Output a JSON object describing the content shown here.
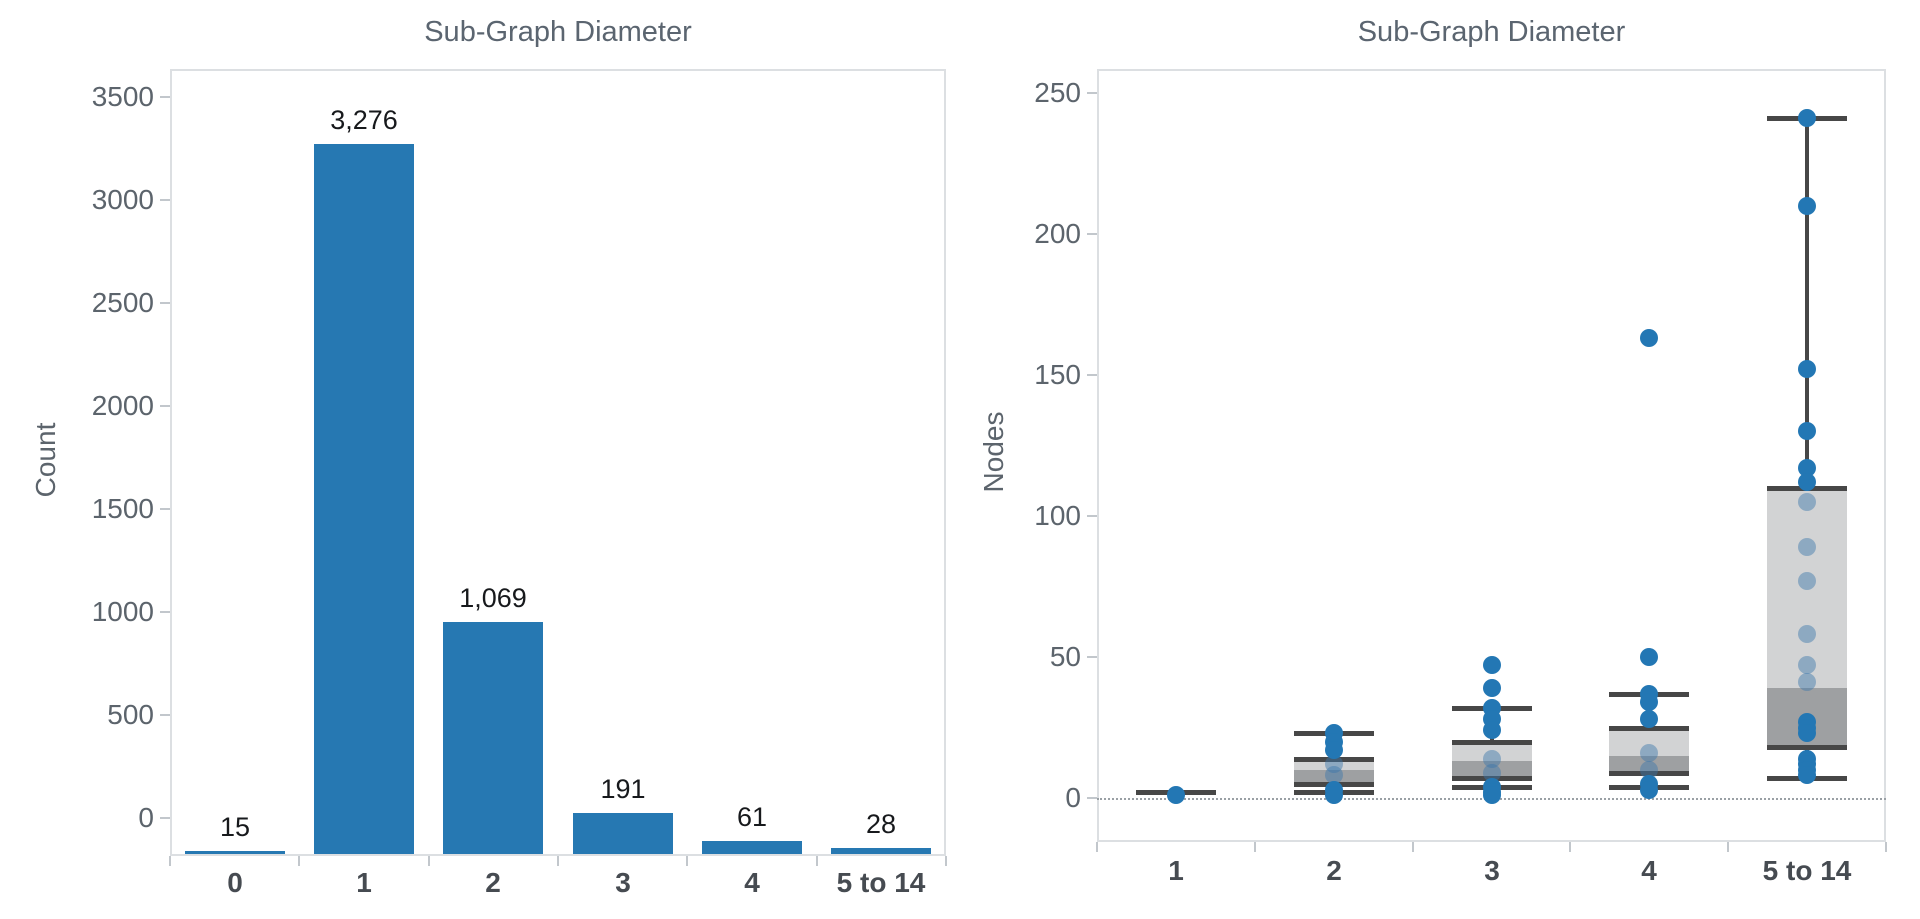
{
  "colors": {
    "bar_blue": "#2678b2",
    "dot_blue": "#2377b4",
    "dot_faded": "rgba(58,118,170,0.45)",
    "box_fill_light": "#d2d3d4",
    "box_fill_dark": "#9ea0a2",
    "box_line": "#474747",
    "plot_border": "#dcdfe2",
    "tick_mark": "#c2c7cc",
    "title_text": "#5b6570",
    "tick_text": "#5c646c",
    "xlabel_text": "#464b51",
    "value_label_text": "#17191c",
    "zero_line": "#9aa0a5"
  },
  "chart_data": [
    {
      "type": "bar",
      "title": "Sub-Graph Diameter",
      "xlabel": "",
      "ylabel": "Count",
      "categories": [
        "0",
        "1",
        "2",
        "3",
        "4",
        "5 to 14"
      ],
      "values": [
        15,
        3276,
        1069,
        191,
        61,
        28
      ],
      "value_labels": [
        "15",
        "3,276",
        "1,069",
        "191",
        "61",
        "28"
      ],
      "yticks": [
        0,
        500,
        1000,
        1500,
        2000,
        2500,
        3000,
        3500
      ],
      "ytick_labels": [
        "0",
        "500",
        "1000",
        "1500",
        "2000",
        "2500",
        "3000",
        "3500"
      ],
      "ylim": [
        0,
        3500
      ],
      "grid": false,
      "legend": "none"
    },
    {
      "type": "boxplot",
      "title": "Sub-Graph Diameter",
      "xlabel": "",
      "ylabel": "Nodes",
      "categories": [
        "1",
        "2",
        "3",
        "4",
        "5 to 14"
      ],
      "yticks": [
        0,
        50,
        100,
        150,
        200,
        250
      ],
      "ytick_labels": [
        "0",
        "50",
        "100",
        "150",
        "200",
        "250"
      ],
      "ylim": [
        -5,
        255
      ],
      "zero_reference_line": true,
      "grid": false,
      "legend": "none",
      "series": [
        {
          "category": "1",
          "low": 2,
          "q1": 2,
          "median": 2,
          "q3": 2,
          "high": 2,
          "points": [
            1
          ],
          "points_faded": []
        },
        {
          "category": "2",
          "low": 2,
          "q1": 5,
          "median": 10,
          "q3": 14,
          "high": 23,
          "points": [
            23,
            20,
            17,
            3,
            1
          ],
          "points_faded": [
            12,
            8
          ]
        },
        {
          "category": "3",
          "low": 4,
          "q1": 7,
          "median": 13,
          "q3": 20,
          "high": 32,
          "points": [
            47,
            39,
            32,
            28,
            24,
            4,
            2,
            1
          ],
          "points_faded": [
            14,
            9
          ]
        },
        {
          "category": "4",
          "low": 4,
          "q1": 9,
          "median": 15,
          "q3": 25,
          "high": 37,
          "points": [
            163,
            50,
            37,
            34,
            28,
            5,
            3
          ],
          "points_faded": [
            16,
            10
          ]
        },
        {
          "category": "5 to 14",
          "low": 7,
          "q1": 18,
          "median": 39,
          "q3": 110,
          "high": 241,
          "points": [
            241,
            210,
            152,
            130,
            117,
            112,
            27,
            25,
            23,
            14,
            12,
            10,
            8
          ],
          "points_faded": [
            105,
            89,
            77,
            58,
            47,
            41
          ]
        }
      ]
    }
  ]
}
